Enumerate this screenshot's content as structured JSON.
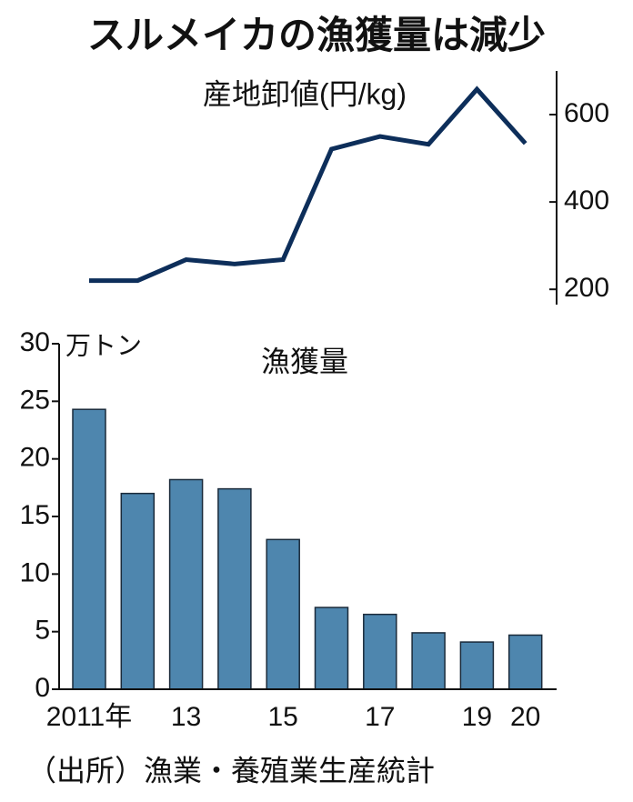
{
  "title": "スルメイカの漁獲量は減少",
  "source": "（出所）漁業・養殖業生産統計",
  "chart_data": [
    {
      "type": "line",
      "title": "産地卸値(円/kg)",
      "values": [
        220,
        220,
        268,
        258,
        268,
        521,
        550,
        532,
        658,
        534
      ],
      "color": "#0d2e5a",
      "ylim": [
        165,
        700
      ],
      "yticks": [
        200,
        400,
        600
      ]
    },
    {
      "type": "bar",
      "title": "漁獲量",
      "y_label": "万トン",
      "categories": [
        "2011年",
        null,
        "13",
        null,
        "15",
        null,
        "17",
        null,
        "19",
        "20"
      ],
      "values": [
        24.3,
        17.0,
        18.2,
        17.4,
        13.0,
        7.1,
        6.5,
        4.9,
        4.1,
        4.7
      ],
      "color": "#4e86ae",
      "ylim": [
        0,
        30
      ],
      "yticks": [
        0,
        5,
        10,
        15,
        20,
        25,
        30
      ]
    }
  ]
}
